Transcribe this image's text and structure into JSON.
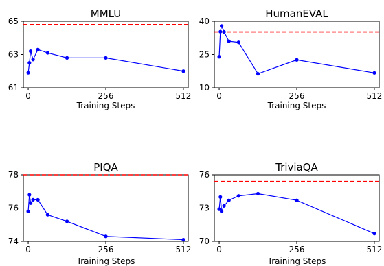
{
  "chart_data": [
    {
      "type": "line",
      "title": "MMLU",
      "xlabel": "Training Steps",
      "ylabel": "",
      "xlim": [
        -16,
        528
      ],
      "ylim": [
        61,
        65
      ],
      "xticks": [
        0,
        256,
        512
      ],
      "yticks": [
        61,
        63,
        65
      ],
      "reference_line": 64.8,
      "x": [
        0,
        4,
        8,
        16,
        32,
        64,
        128,
        256,
        512
      ],
      "y": [
        61.9,
        62.5,
        63.2,
        62.7,
        63.3,
        63.1,
        62.8,
        62.8,
        62.0
      ],
      "line_color": "#0000ff",
      "reference_color": "#ff0000"
    },
    {
      "type": "line",
      "title": "HumanEVAL",
      "xlabel": "Training Steps",
      "ylabel": "",
      "xlim": [
        -16,
        528
      ],
      "ylim": [
        10,
        40
      ],
      "xticks": [
        0,
        256,
        512
      ],
      "yticks": [
        10,
        25,
        40
      ],
      "reference_line": 35.2,
      "x": [
        0,
        4,
        8,
        16,
        32,
        64,
        128,
        256,
        512
      ],
      "y": [
        24,
        35.3,
        37.9,
        35.2,
        31,
        30.5,
        16.3,
        22.6,
        16.7
      ],
      "line_color": "#0000ff",
      "reference_color": "#ff0000"
    },
    {
      "type": "line",
      "title": "PIQA",
      "xlabel": "Training Steps",
      "ylabel": "",
      "xlim": [
        -16,
        528
      ],
      "ylim": [
        74,
        78
      ],
      "xticks": [
        0,
        256,
        512
      ],
      "yticks": [
        74,
        76,
        78
      ],
      "reference_line": 78.0,
      "x": [
        0,
        4,
        8,
        16,
        32,
        64,
        128,
        256,
        512
      ],
      "y": [
        75.8,
        76.8,
        76.3,
        76.5,
        76.5,
        75.6,
        75.2,
        74.3,
        74.1
      ],
      "line_color": "#0000ff",
      "reference_color": "#ff0000"
    },
    {
      "type": "line",
      "title": "TriviaQA",
      "xlabel": "Training Steps",
      "ylabel": "",
      "xlim": [
        -16,
        528
      ],
      "ylim": [
        70,
        76
      ],
      "xticks": [
        0,
        256,
        512
      ],
      "yticks": [
        70,
        73,
        76
      ],
      "reference_line": 75.4,
      "x": [
        0,
        4,
        8,
        16,
        32,
        64,
        128,
        256,
        512
      ],
      "y": [
        72.9,
        74.0,
        72.7,
        73.2,
        73.7,
        74.1,
        74.3,
        73.7,
        70.7
      ],
      "line_color": "#0000ff",
      "reference_color": "#ff0000"
    }
  ]
}
